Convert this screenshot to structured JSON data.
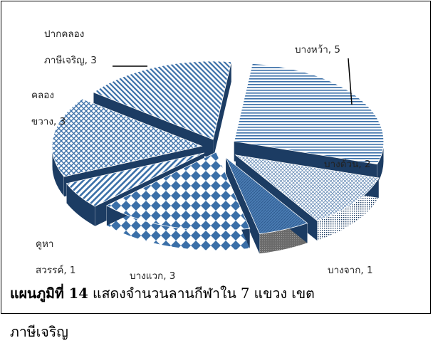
{
  "chart_data": {
    "type": "pie",
    "style": "3d-exploded",
    "categories": [
      "บางหว้า",
      "บางด้วน",
      "บางจาก",
      "บางแวก",
      "คูหาสวรรค์",
      "คลองขวาง",
      "ปากคลองภาษีเจริญ"
    ],
    "values": [
      5,
      2,
      1,
      3,
      1,
      3,
      3
    ],
    "data_labels": [
      [
        "บางหว้า, 5"
      ],
      [
        "บางด้วน, 2"
      ],
      [
        "บางจาก, 1"
      ],
      [
        "บางแวก, 3"
      ],
      [
        "คูหา",
        "สวรรค์, 1"
      ],
      [
        "คลอง",
        "ขวาง, 3"
      ],
      [
        "ปากคลอง",
        "ภาษีเจริญ, 3"
      ]
    ],
    "legend": "none",
    "title": "",
    "colors": {
      "dark": "#1c3c63",
      "mid": "#3a6fa8",
      "light": "#d8e2ef",
      "gray": "#7b7b7b",
      "white": "#ffffff"
    }
  },
  "caption": {
    "bold_part": "แผนภูมิที่ 14",
    "line1_rest": " แสดงจำนวนลานกีฬาใน 7 แขวง เขต",
    "line2": "ภาษีเจริญ"
  }
}
